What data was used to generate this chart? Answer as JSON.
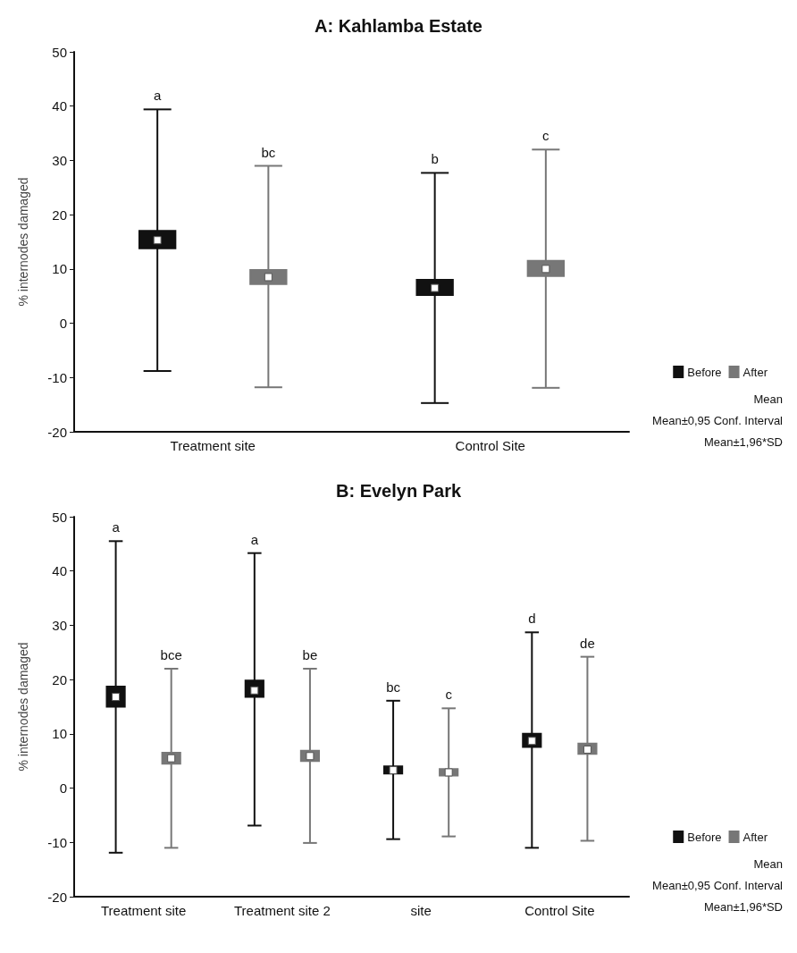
{
  "chart_data": [
    {
      "type": "box",
      "title": "A: Kahlamba Estate",
      "ylabel": "% internodes damaged",
      "categories": [
        "Treatment site",
        "Control Site"
      ],
      "ylim": [
        -20,
        50
      ],
      "yticks": [
        -20,
        -10,
        0,
        10,
        20,
        30,
        40,
        50
      ],
      "grid": false,
      "legend": "bottom right",
      "series": [
        {
          "name": "Before",
          "color": "#111111",
          "value_labels": [
            "a",
            "b"
          ],
          "boxes": [
            {
              "low": -8.8,
              "q1": 13.8,
              "median": 15.3,
              "q3": 17,
              "high": 39.4
            },
            {
              "low": -14.7,
              "q1": 5.2,
              "median": 6.5,
              "q3": 8,
              "high": 27.7
            }
          ]
        },
        {
          "name": "After",
          "color": "#777777",
          "value_labels": [
            "bc",
            "c"
          ],
          "boxes": [
            {
              "low": -11.8,
              "q1": 7.2,
              "median": 8.5,
              "q3": 9.8,
              "high": 29
            },
            {
              "low": -11.9,
              "q1": 8.7,
              "median": 10,
              "q3": 11.5,
              "high": 32
            }
          ]
        }
      ],
      "annotations": [
        "Mean",
        "Mean±0,95 Conf. Interval",
        "Mean±1,96*SD"
      ]
    },
    {
      "type": "box",
      "title": "B: Evelyn Park",
      "ylabel": "% internodes damaged",
      "categories": [
        "Treatment site",
        "Treatment site 2",
        "site",
        "Control Site"
      ],
      "ylim": [
        -20,
        50
      ],
      "yticks": [
        -20,
        -10,
        0,
        10,
        20,
        30,
        40,
        50
      ],
      "grid": false,
      "legend": "bottom right",
      "series": [
        {
          "name": "Before",
          "color": "#111111",
          "value_labels": [
            "a",
            "a",
            "bc",
            "d"
          ],
          "boxes": [
            {
              "low": -11.9,
              "q1": 15,
              "median": 16.8,
              "q3": 18.7,
              "high": 45.5
            },
            {
              "low": -6.9,
              "q1": 16.8,
              "median": 18,
              "q3": 19.8,
              "high": 43.3
            },
            {
              "low": -9.4,
              "q1": 2.7,
              "median": 3.3,
              "q3": 4,
              "high": 16.1
            },
            {
              "low": -11,
              "q1": 7.6,
              "median": 8.7,
              "q3": 10,
              "high": 28.7
            }
          ]
        },
        {
          "name": "After",
          "color": "#777777",
          "value_labels": [
            "bce",
            "be",
            "c",
            "de"
          ],
          "boxes": [
            {
              "low": -11,
              "q1": 4.5,
              "median": 5.5,
              "q3": 6.5,
              "high": 22
            },
            {
              "low": -10.1,
              "q1": 5,
              "median": 5.9,
              "q3": 6.9,
              "high": 22
            },
            {
              "low": -8.9,
              "q1": 2.3,
              "median": 2.9,
              "q3": 3.5,
              "high": 14.7
            },
            {
              "low": -9.7,
              "q1": 6.3,
              "median": 7.1,
              "q3": 8.2,
              "high": 24.2
            }
          ]
        }
      ],
      "annotations": [
        "Mean",
        "Mean±0,95 Conf. Interval",
        "Mean±1,96*SD"
      ]
    }
  ]
}
